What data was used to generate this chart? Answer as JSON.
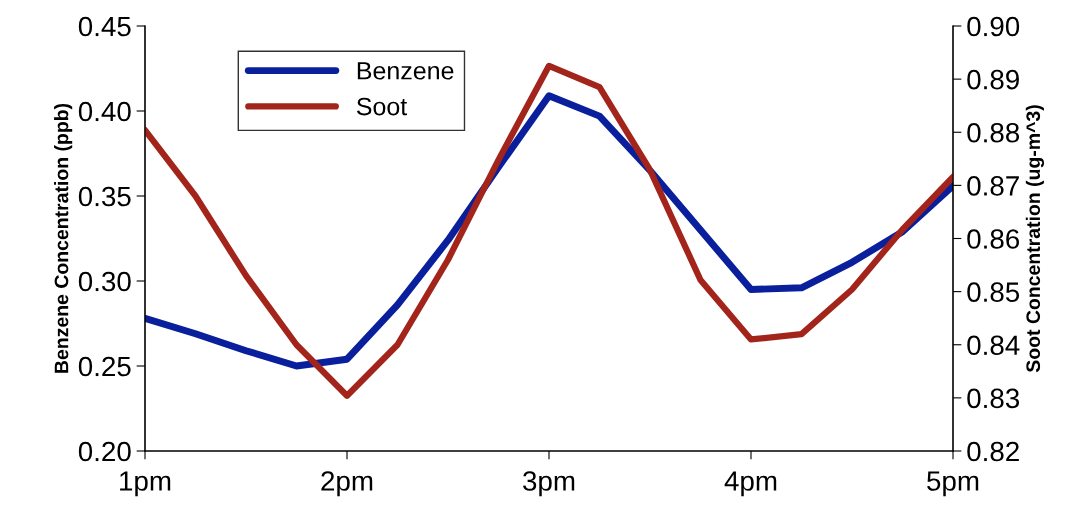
{
  "chart_data": {
    "type": "line",
    "ylabel": "Benzene Concentration (ppb)",
    "y2label": "Soot Concentration (ug-m^3)",
    "categories": [
      "1pm",
      null,
      null,
      null,
      "2pm",
      null,
      null,
      null,
      "3pm",
      null,
      null,
      null,
      "4pm",
      null,
      null,
      null,
      "5pm"
    ],
    "ylim": [
      0.2,
      0.45
    ],
    "yticks": [
      {
        "value": 0.2,
        "label": "0.20"
      },
      {
        "value": 0.25,
        "label": "0.25"
      },
      {
        "value": 0.3,
        "label": "0.30"
      },
      {
        "value": 0.35,
        "label": "0.35"
      },
      {
        "value": 0.4,
        "label": "0.40"
      },
      {
        "value": 0.45,
        "label": "0.45"
      }
    ],
    "y2lim": [
      0.82,
      0.9
    ],
    "y2ticks": [
      {
        "value": 0.82,
        "label": "0.82"
      },
      {
        "value": 0.83,
        "label": "0.83"
      },
      {
        "value": 0.84,
        "label": "0.84"
      },
      {
        "value": 0.85,
        "label": "0.85"
      },
      {
        "value": 0.86,
        "label": "0.86"
      },
      {
        "value": 0.87,
        "label": "0.87"
      },
      {
        "value": 0.88,
        "label": "0.88"
      },
      {
        "value": 0.89,
        "label": "0.89"
      },
      {
        "value": 0.9,
        "label": "0.90"
      }
    ],
    "grid": false,
    "legend": "top left",
    "marker": "none",
    "line_style": "solid",
    "series": [
      {
        "name": "Benzene",
        "color": "#0a1f9c",
        "values": [
          0.278,
          0.269,
          0.259,
          0.25,
          0.254,
          0.286,
          0.324,
          0.367,
          0.409,
          0.397,
          0.365,
          0.33,
          0.295,
          0.296,
          0.311,
          0.329,
          0.356
        ]
      },
      {
        "name": "Soot",
        "color": "#a3241a",
        "axis": "y2",
        "values": [
          0.8804,
          0.868,
          0.853,
          0.84,
          0.8304,
          0.84,
          0.856,
          0.8748,
          0.8925,
          0.8885,
          0.8729,
          0.8522,
          0.841,
          0.842,
          0.8504,
          0.8617,
          0.8716
        ]
      }
    ]
  }
}
